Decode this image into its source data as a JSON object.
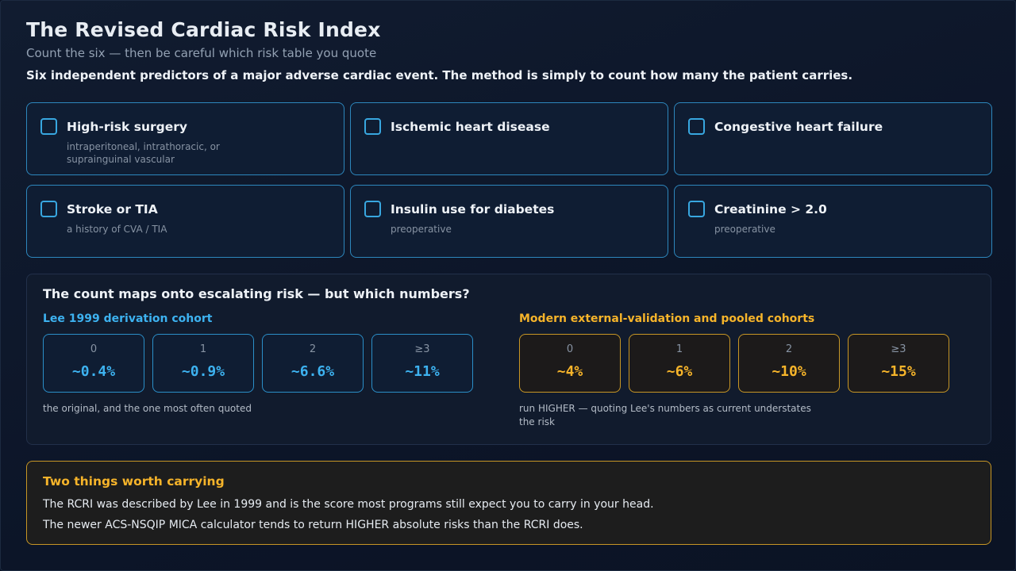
{
  "header": {
    "title": "The Revised Cardiac Risk Index",
    "subtitle": "Count the six — then be careful which risk table you quote",
    "lede": "Six independent predictors of a major adverse cardiac event. The method is simply to count how many the patient carries."
  },
  "predictors": [
    {
      "name": "High-risk surgery",
      "note": "intraperitoneal, intrathoracic, or suprainguinal vascular",
      "checked": false
    },
    {
      "name": "Ischemic heart disease",
      "note": "",
      "checked": false
    },
    {
      "name": "Congestive heart failure",
      "note": "",
      "checked": false
    },
    {
      "name": "Stroke or TIA",
      "note": "a history of CVA / TIA",
      "checked": false
    },
    {
      "name": "Insulin use for diabetes",
      "note": "preoperative",
      "checked": false
    },
    {
      "name": "Creatinine > 2.0",
      "note": "preoperative",
      "checked": false
    }
  ],
  "risk": {
    "title": "The count maps onto escalating risk — but which numbers?",
    "lee": {
      "title": "Lee 1999 derivation cohort",
      "cells": [
        {
          "count": "0",
          "value": "~0.4%"
        },
        {
          "count": "1",
          "value": "~0.9%"
        },
        {
          "count": "2",
          "value": "~6.6%"
        },
        {
          "count": "≥3",
          "value": "~11%"
        }
      ],
      "note": "the original, and the one most often quoted"
    },
    "modern": {
      "title": "Modern external-validation and pooled cohorts",
      "cells": [
        {
          "count": "0",
          "value": "~4%"
        },
        {
          "count": "1",
          "value": "~6%"
        },
        {
          "count": "2",
          "value": "~10%"
        },
        {
          "count": "≥3",
          "value": "~15%"
        }
      ],
      "note": "run HIGHER — quoting Lee's numbers as current understates the risk"
    }
  },
  "callout": {
    "title": "Two things worth carrying",
    "lines": [
      "The RCRI was described by Lee in 1999 and is the score most programs still expect you to carry in your head.",
      "The newer ACS-NSQIP MICA calculator tends to return HIGHER absolute risks than the RCRI does."
    ]
  },
  "colors": {
    "accent_blue": "#3db2f0",
    "accent_amber": "#f6b42a",
    "background": "#0b1324"
  }
}
